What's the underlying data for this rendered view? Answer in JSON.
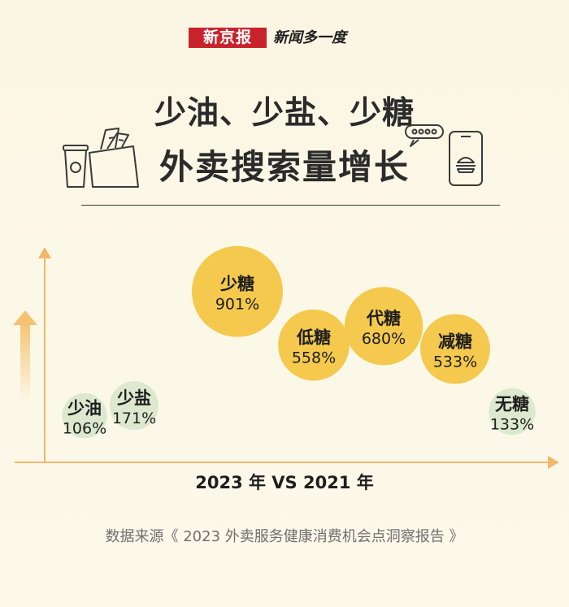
{
  "brand": {
    "logo_text": "新京报",
    "subtitle": "新闻多一度"
  },
  "title": {
    "line1": "少油、少盐、少糖",
    "line2": "外卖搜索量增长"
  },
  "chart_data": {
    "type": "scatter",
    "title": "少油、少盐、少糖外卖搜索量增长",
    "xlabel": "2023 年 VS 2021 年",
    "unit": "%",
    "categories": [
      "少油",
      "少盐",
      "少糖",
      "低糖",
      "代糖",
      "减糖",
      "无糖"
    ],
    "values": [
      106,
      171,
      901,
      558,
      680,
      533,
      133
    ],
    "value_labels": [
      "106%",
      "171%",
      "901%",
      "558%",
      "680%",
      "533%",
      "133%"
    ],
    "colors": {
      "high": "#f4c94d",
      "low": "#dce9cf",
      "axis": "#f2b76a"
    },
    "grid": false
  },
  "source": "数据来源《 2023 外卖服务健康消费机会点洞察报告 》"
}
